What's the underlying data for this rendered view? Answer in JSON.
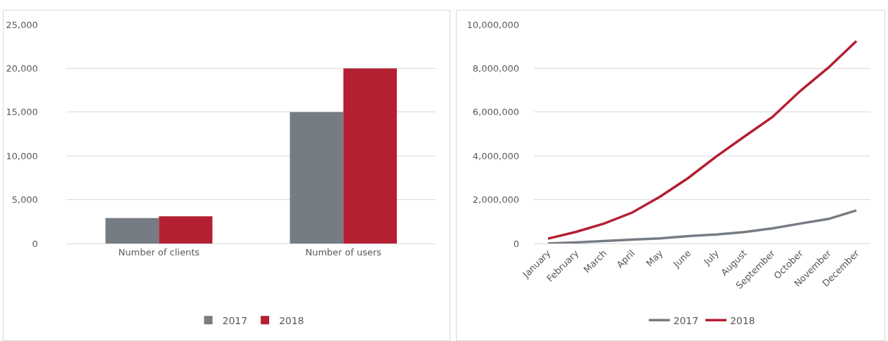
{
  "chart_data": [
    {
      "type": "bar",
      "categories": [
        "Number of clients",
        "Number of users"
      ],
      "series": [
        {
          "name": "2017",
          "color": "#767c83",
          "values": [
            2900,
            15000
          ]
        },
        {
          "name": "2018",
          "color": "#b41f32",
          "values": [
            3100,
            20000
          ]
        }
      ],
      "ylim": [
        0,
        25000
      ],
      "yticks": [
        0,
        {
          "value": 5000,
          "label": "5,000"
        },
        {
          "value": 10000,
          "label": "10,000"
        },
        {
          "value": 15000,
          "label": "15,000"
        },
        {
          "value": 20000,
          "label": "20,000"
        },
        {
          "value": 25000,
          "label": "25,000"
        }
      ],
      "grid": "y",
      "legend": "bottom"
    },
    {
      "type": "line",
      "categories": [
        "January",
        "February",
        "March",
        "April",
        "May",
        "June",
        "July",
        "August",
        "September",
        "October",
        "November",
        "December"
      ],
      "series": [
        {
          "name": "2017",
          "color": "#767c83",
          "values": [
            0,
            50000,
            110000,
            180000,
            230000,
            340000,
            410000,
            520000,
            690000,
            910000,
            1120000,
            1510000
          ]
        },
        {
          "name": "2018",
          "color": "#b41f32",
          "values": [
            220000,
            530000,
            910000,
            1410000,
            2140000,
            2990000,
            3970000,
            4880000,
            5770000,
            6970000,
            8030000,
            9250000
          ]
        }
      ],
      "ylim": [
        0,
        10000000
      ],
      "yticks": [
        0,
        {
          "value": 2000000,
          "label": "2,000,000"
        },
        {
          "value": 4000000,
          "label": "4,000,000"
        },
        {
          "value": 6000000,
          "label": "6,000,000"
        },
        {
          "value": 8000000,
          "label": "8,000,000"
        },
        {
          "value": 10000000,
          "label": "10,000,000"
        }
      ],
      "grid": "y",
      "legend": "bottom",
      "marker": "none",
      "line_style": "solid"
    }
  ]
}
